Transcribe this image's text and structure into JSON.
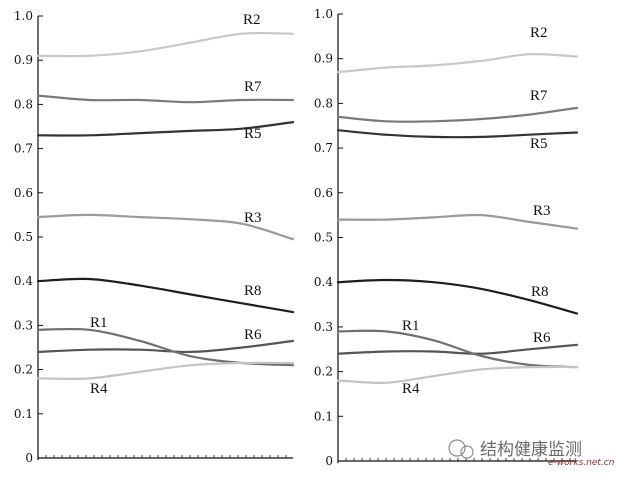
{
  "chart_data": [
    {
      "type": "line",
      "title": "",
      "xlabel": "",
      "ylabel": "",
      "ylim": [
        0,
        1.0
      ],
      "y_ticks": [
        "0",
        "0.1",
        "0.2",
        "0.3",
        "0.4",
        "0.5",
        "0.6",
        "0.7",
        "0.8",
        "0.9",
        "1.0"
      ],
      "x_ticks": [],
      "grid": false,
      "legend": "inline labels",
      "series": [
        {
          "name": "R2",
          "color": "#c8c8c8",
          "values": [
            0.91,
            0.91,
            0.92,
            0.94,
            0.96,
            0.96
          ]
        },
        {
          "name": "R7",
          "color": "#7a7a7a",
          "values": [
            0.82,
            0.81,
            0.81,
            0.805,
            0.81,
            0.81
          ]
        },
        {
          "name": "R5",
          "color": "#333333",
          "values": [
            0.73,
            0.73,
            0.735,
            0.74,
            0.745,
            0.76
          ]
        },
        {
          "name": "R3",
          "color": "#9a9a9a",
          "values": [
            0.545,
            0.55,
            0.545,
            0.54,
            0.53,
            0.495
          ]
        },
        {
          "name": "R8",
          "color": "#1e1e1e",
          "values": [
            0.4,
            0.405,
            0.39,
            0.37,
            0.35,
            0.33
          ]
        },
        {
          "name": "R6",
          "color": "#555555",
          "values": [
            0.24,
            0.245,
            0.245,
            0.24,
            0.25,
            0.265
          ]
        },
        {
          "name": "R1",
          "color": "#707070",
          "values": [
            0.29,
            0.29,
            0.265,
            0.23,
            0.215,
            0.21
          ]
        },
        {
          "name": "R4",
          "color": "#c4c4c4",
          "values": [
            0.18,
            0.18,
            0.195,
            0.21,
            0.215,
            0.215
          ]
        }
      ]
    },
    {
      "type": "line",
      "title": "",
      "xlabel": "",
      "ylabel": "",
      "ylim": [
        0,
        1.0
      ],
      "y_ticks": [
        "0",
        "0.1",
        "0.2",
        "0.3",
        "0.4",
        "0.5",
        "0.6",
        "0.7",
        "0.8",
        "0.9",
        "1.0"
      ],
      "x_ticks": [],
      "grid": false,
      "legend": "inline labels",
      "series": [
        {
          "name": "R2",
          "color": "#c8c8c8",
          "values": [
            0.87,
            0.88,
            0.885,
            0.895,
            0.91,
            0.905
          ]
        },
        {
          "name": "R7",
          "color": "#7a7a7a",
          "values": [
            0.77,
            0.76,
            0.76,
            0.765,
            0.775,
            0.79
          ]
        },
        {
          "name": "R5",
          "color": "#333333",
          "values": [
            0.74,
            0.73,
            0.725,
            0.725,
            0.73,
            0.735
          ]
        },
        {
          "name": "R3",
          "color": "#9a9a9a",
          "values": [
            0.54,
            0.54,
            0.545,
            0.55,
            0.535,
            0.52
          ]
        },
        {
          "name": "R8",
          "color": "#1e1e1e",
          "values": [
            0.4,
            0.405,
            0.4,
            0.385,
            0.36,
            0.33
          ]
        },
        {
          "name": "R6",
          "color": "#555555",
          "values": [
            0.24,
            0.245,
            0.245,
            0.24,
            0.25,
            0.26
          ]
        },
        {
          "name": "R1",
          "color": "#707070",
          "values": [
            0.29,
            0.29,
            0.27,
            0.235,
            0.215,
            0.21
          ]
        },
        {
          "name": "R4",
          "color": "#c4c4c4",
          "values": [
            0.18,
            0.175,
            0.19,
            0.205,
            0.21,
            0.21
          ]
        }
      ]
    }
  ],
  "watermark": {
    "text": "结构健康监测",
    "site": "e-works.net.cn",
    "icon": "wechat-icon"
  }
}
